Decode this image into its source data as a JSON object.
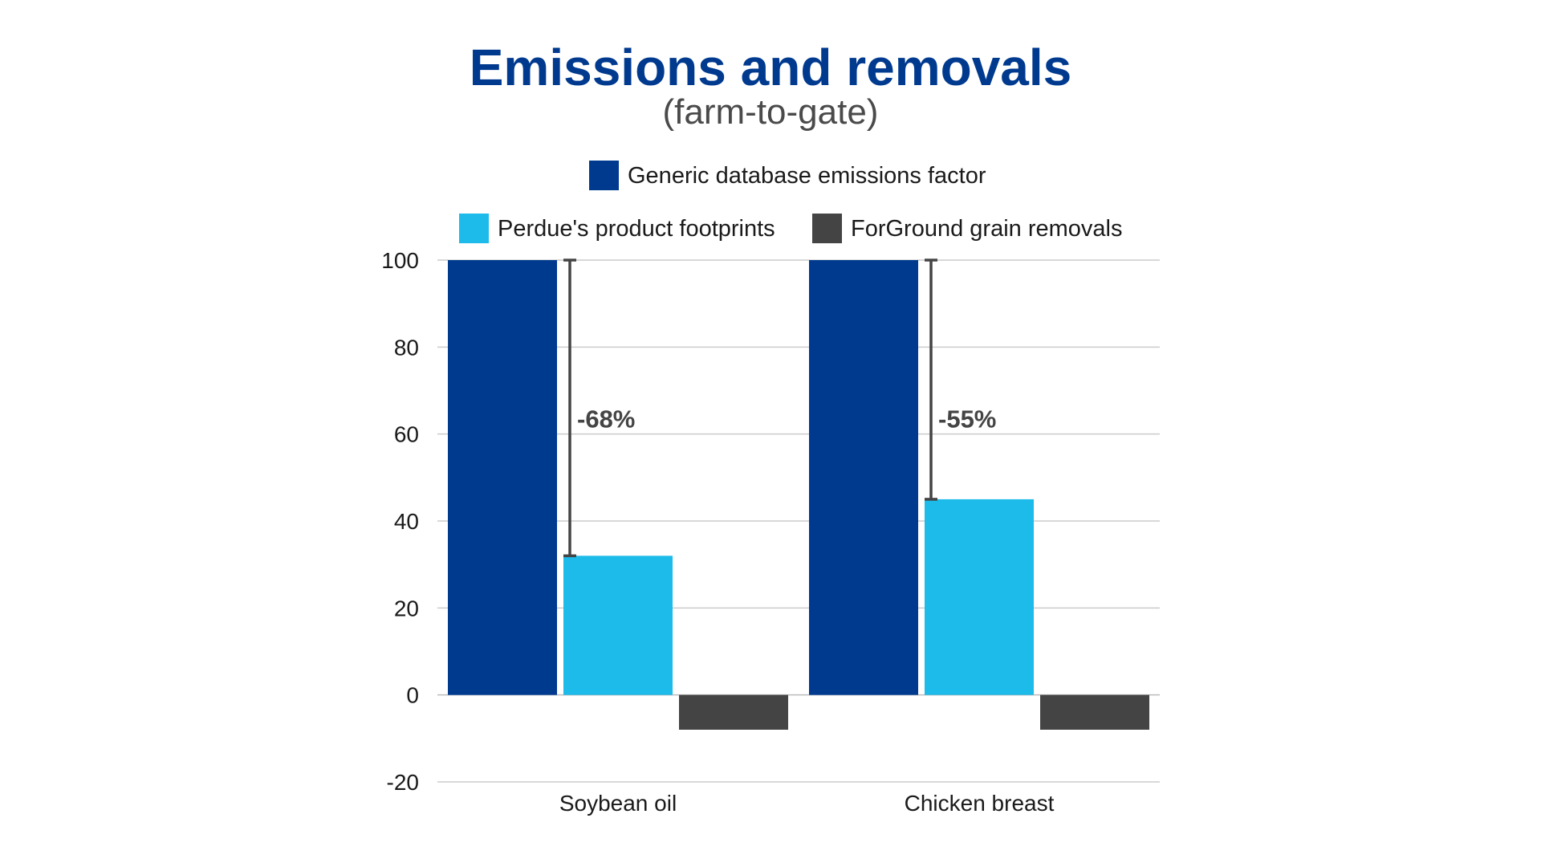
{
  "chart_data": {
    "type": "bar",
    "title": "Emissions and removals",
    "subtitle": "(farm-to-gate)",
    "categories": [
      "Soybean oil",
      "Chicken breast"
    ],
    "series": [
      {
        "name": "Generic database emissions factor",
        "values": [
          100,
          100
        ],
        "color": "#003A8F"
      },
      {
        "name": "Perdue's product footprints",
        "values": [
          32,
          45
        ],
        "color": "#1CBBEA"
      },
      {
        "name": "ForGround grain removals",
        "values": [
          -8,
          -8
        ],
        "color": "#444444"
      }
    ],
    "annotations": [
      {
        "category": "Soybean oil",
        "from": 100,
        "to": 32,
        "label": "-68%"
      },
      {
        "category": "Chicken breast",
        "from": 100,
        "to": 45,
        "label": "-55%"
      }
    ],
    "ylim": [
      -20,
      100
    ],
    "yticks": [
      100,
      80,
      60,
      40,
      20,
      0,
      -20
    ],
    "xlabel": "",
    "ylabel": "",
    "grid": true,
    "legend_position": "top",
    "colors": {
      "title": "#003A8F",
      "annotation": "#444444",
      "grid": "#cccccc"
    }
  }
}
